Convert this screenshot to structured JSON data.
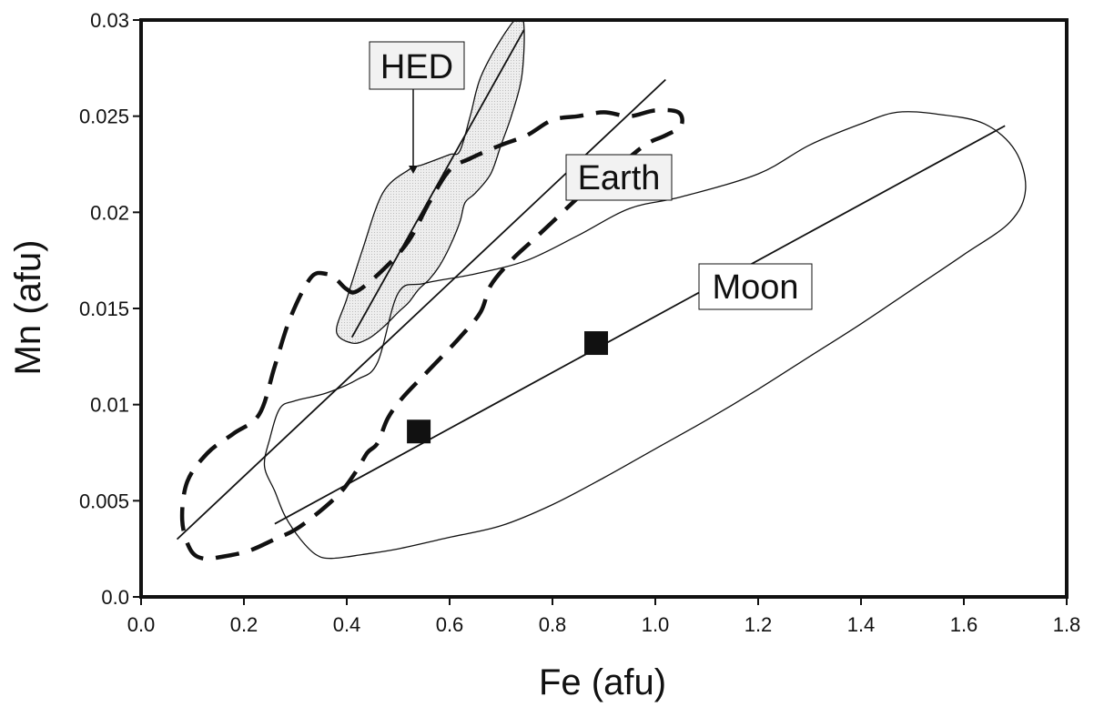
{
  "chart_data": {
    "type": "scatter",
    "title": "",
    "xlabel": "Fe (afu)",
    "ylabel": "Mn (afu)",
    "xlim": [
      0.0,
      1.8
    ],
    "ylim": [
      0.0,
      0.03
    ],
    "x_ticks": [
      {
        "value": 0.0,
        "label": "0.0"
      },
      {
        "value": 0.2,
        "label": "0.2"
      },
      {
        "value": 0.4,
        "label": "0.4"
      },
      {
        "value": 0.6,
        "label": "0.6"
      },
      {
        "value": 0.8,
        "label": "0.8"
      },
      {
        "value": 1.0,
        "label": "1.0"
      },
      {
        "value": 1.2,
        "label": "1.2"
      },
      {
        "value": 1.4,
        "label": "1.4"
      },
      {
        "value": 1.6,
        "label": "1.6"
      },
      {
        "value": 1.8,
        "label": "1.8"
      }
    ],
    "y_ticks": [
      {
        "value": 0.0,
        "label": "0.0"
      },
      {
        "value": 0.005,
        "label": "0.005"
      },
      {
        "value": 0.01,
        "label": "0.01"
      },
      {
        "value": 0.015,
        "label": "0.015"
      },
      {
        "value": 0.02,
        "label": "0.02"
      },
      {
        "value": 0.025,
        "label": "0.025"
      },
      {
        "value": 0.03,
        "label": "0.03"
      }
    ],
    "grid": false,
    "regions": [
      {
        "label": "HED",
        "style": "solid",
        "fill": "#e4e4e4",
        "polygon": [
          [
            0.38,
            0.0138
          ],
          [
            0.4,
            0.0155
          ],
          [
            0.43,
            0.018
          ],
          [
            0.47,
            0.021
          ],
          [
            0.52,
            0.0222
          ],
          [
            0.55,
            0.0225
          ],
          [
            0.6,
            0.023
          ],
          [
            0.62,
            0.0232
          ],
          [
            0.64,
            0.025
          ],
          [
            0.66,
            0.027
          ],
          [
            0.7,
            0.029
          ],
          [
            0.735,
            0.0302
          ],
          [
            0.745,
            0.0295
          ],
          [
            0.74,
            0.027
          ],
          [
            0.72,
            0.025
          ],
          [
            0.7,
            0.0235
          ],
          [
            0.68,
            0.022
          ],
          [
            0.65,
            0.021
          ],
          [
            0.63,
            0.0205
          ],
          [
            0.62,
            0.0195
          ],
          [
            0.6,
            0.0182
          ],
          [
            0.58,
            0.0172
          ],
          [
            0.56,
            0.0165
          ],
          [
            0.54,
            0.016
          ],
          [
            0.52,
            0.0153
          ],
          [
            0.5,
            0.0148
          ],
          [
            0.47,
            0.014
          ],
          [
            0.44,
            0.0134
          ],
          [
            0.41,
            0.0132
          ]
        ],
        "fit_line": [
          [
            0.41,
            0.0135
          ],
          [
            0.745,
            0.0295
          ]
        ]
      },
      {
        "label": "Earth",
        "style": "dashed",
        "fill": "none",
        "polygon": [
          [
            0.42,
            0.0159
          ],
          [
            0.4,
            0.016
          ],
          [
            0.38,
            0.0165
          ],
          [
            0.36,
            0.0168
          ],
          [
            0.33,
            0.0166
          ],
          [
            0.29,
            0.0145
          ],
          [
            0.26,
            0.012
          ],
          [
            0.23,
            0.0095
          ],
          [
            0.18,
            0.0085
          ],
          [
            0.13,
            0.0075
          ],
          [
            0.09,
            0.006
          ],
          [
            0.08,
            0.004
          ],
          [
            0.095,
            0.0025
          ],
          [
            0.12,
            0.002
          ],
          [
            0.16,
            0.0021
          ],
          [
            0.21,
            0.0024
          ],
          [
            0.26,
            0.003
          ],
          [
            0.3,
            0.0035
          ],
          [
            0.35,
            0.0045
          ],
          [
            0.39,
            0.0055
          ],
          [
            0.42,
            0.0066
          ],
          [
            0.44,
            0.0075
          ],
          [
            0.46,
            0.008
          ],
          [
            0.48,
            0.0093
          ],
          [
            0.51,
            0.0104
          ],
          [
            0.56,
            0.0118
          ],
          [
            0.62,
            0.0135
          ],
          [
            0.66,
            0.0148
          ],
          [
            0.68,
            0.0162
          ],
          [
            0.72,
            0.0175
          ],
          [
            0.76,
            0.0185
          ],
          [
            0.8,
            0.0195
          ],
          [
            0.86,
            0.021
          ],
          [
            0.92,
            0.0222
          ],
          [
            0.98,
            0.0235
          ],
          [
            1.02,
            0.024
          ],
          [
            1.05,
            0.0245
          ],
          [
            1.045,
            0.0252
          ],
          [
            1.0,
            0.0253
          ],
          [
            0.95,
            0.025
          ],
          [
            0.9,
            0.0252
          ],
          [
            0.85,
            0.025
          ],
          [
            0.8,
            0.0248
          ],
          [
            0.75,
            0.024
          ],
          [
            0.7,
            0.0235
          ],
          [
            0.64,
            0.0228
          ],
          [
            0.6,
            0.0222
          ],
          [
            0.56,
            0.0205
          ],
          [
            0.52,
            0.0185
          ],
          [
            0.47,
            0.017
          ]
        ],
        "fit_line": [
          [
            0.07,
            0.003
          ],
          [
            1.02,
            0.0269
          ]
        ]
      },
      {
        "label": "Moon",
        "style": "solid",
        "fill": "none",
        "polygon": [
          [
            0.25,
            0.0082
          ],
          [
            0.27,
            0.0098
          ],
          [
            0.3,
            0.0102
          ],
          [
            0.36,
            0.0106
          ],
          [
            0.42,
            0.0113
          ],
          [
            0.46,
            0.0122
          ],
          [
            0.5,
            0.0158
          ],
          [
            0.55,
            0.0163
          ],
          [
            0.65,
            0.0168
          ],
          [
            0.75,
            0.0175
          ],
          [
            0.85,
            0.0188
          ],
          [
            0.95,
            0.0202
          ],
          [
            1.05,
            0.0208
          ],
          [
            1.2,
            0.022
          ],
          [
            1.3,
            0.0235
          ],
          [
            1.4,
            0.0246
          ],
          [
            1.47,
            0.0252
          ],
          [
            1.55,
            0.0251
          ],
          [
            1.64,
            0.0246
          ],
          [
            1.7,
            0.0232
          ],
          [
            1.72,
            0.0212
          ],
          [
            1.69,
            0.0195
          ],
          [
            1.6,
            0.0178
          ],
          [
            1.5,
            0.016
          ],
          [
            1.4,
            0.0142
          ],
          [
            1.3,
            0.0125
          ],
          [
            1.2,
            0.0108
          ],
          [
            1.1,
            0.0092
          ],
          [
            1.0,
            0.0077
          ],
          [
            0.9,
            0.0062
          ],
          [
            0.8,
            0.0048
          ],
          [
            0.7,
            0.0037
          ],
          [
            0.6,
            0.0031
          ],
          [
            0.5,
            0.0025
          ],
          [
            0.43,
            0.0022
          ],
          [
            0.37,
            0.002
          ],
          [
            0.34,
            0.0022
          ],
          [
            0.31,
            0.003
          ],
          [
            0.28,
            0.0042
          ],
          [
            0.26,
            0.0055
          ],
          [
            0.24,
            0.0068
          ]
        ],
        "fit_line": [
          [
            0.26,
            0.0038
          ],
          [
            1.68,
            0.0245
          ]
        ]
      }
    ],
    "points": [
      {
        "x": 0.54,
        "y": 0.0086
      },
      {
        "x": 0.885,
        "y": 0.0132
      }
    ],
    "annotations": [
      {
        "text": "HED",
        "arrow_to": {
          "x": 0.52,
          "y": 0.0225
        }
      },
      {
        "text": "Earth"
      },
      {
        "text": "Moon"
      }
    ]
  }
}
